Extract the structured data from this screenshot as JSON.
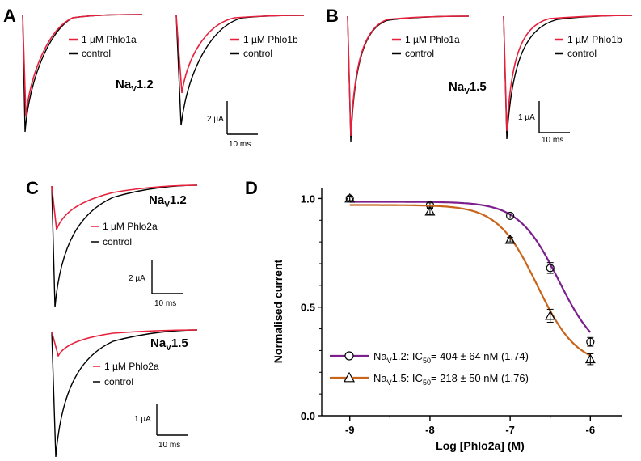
{
  "panels": {
    "A": {
      "label": "A",
      "left_trace": {
        "legend": [
          "1 µM Phlo1a",
          "control"
        ]
      },
      "right_trace": {
        "legend": [
          "1 µM Phlo1b",
          "control"
        ]
      },
      "channel": {
        "main": "Na",
        "sub": "V",
        "suffix": "1.2"
      },
      "scale_bar": {
        "current": "2 µA",
        "time": "10 ms"
      }
    },
    "B": {
      "label": "B",
      "left_trace": {
        "legend": [
          "1 µM Phlo1a",
          "control"
        ]
      },
      "right_trace": {
        "legend": [
          "1 µM Phlo1b",
          "control"
        ]
      },
      "channel": {
        "main": "Na",
        "sub": "V",
        "suffix": "1.5"
      },
      "scale_bar": {
        "current": "1 µA",
        "time": "10 ms"
      }
    },
    "C": {
      "label": "C",
      "top": {
        "channel": {
          "main": "Na",
          "sub": "V",
          "suffix": "1.2"
        },
        "legend": [
          "1 µM Phlo2a",
          "control"
        ],
        "scale_bar": {
          "current": "2 µA",
          "time": "10 ms"
        }
      },
      "bottom": {
        "channel": {
          "main": "Na",
          "sub": "V",
          "suffix": "1.5"
        },
        "legend": [
          "1 µM Phlo2a",
          "control"
        ],
        "scale_bar": {
          "current": "1 µA",
          "time": "10 ms"
        }
      }
    },
    "D": {
      "label": "D"
    }
  },
  "colors": {
    "toxin": "#e8203c",
    "control": "#000000",
    "nav12": "#7b1f8c",
    "nav15": "#c8651b"
  },
  "chart_data": {
    "type": "scatter",
    "xlabel": "Log [Phlo2a] (M)",
    "ylabel": "Normalised current",
    "xlim": [
      -9.35,
      -5.6
    ],
    "ylim": [
      0,
      1.05
    ],
    "xticks": [
      -9,
      -8,
      -7,
      -6
    ],
    "xtick_labels": [
      "-9",
      "-8",
      "-7",
      "-6"
    ],
    "yticks": [
      0,
      0.5,
      1
    ],
    "ytick_labels": [
      "0.0",
      "0.5",
      "1.0"
    ],
    "legend_position": "bottom-left",
    "series": [
      {
        "legend": {
          "main": "Na",
          "sub": "V",
          "rest": "1.2: IC",
          "sub2": "50",
          "tail": "= 404 ± 64 nM (1.74)"
        },
        "marker": "circle",
        "color": "#7b1f8c",
        "x": [
          -9,
          -8,
          -7,
          -6.5,
          -6
        ],
        "y": [
          1.0,
          0.97,
          0.92,
          0.68,
          0.34
        ],
        "err": [
          0.01,
          0.01,
          0.01,
          0.025,
          0.02
        ],
        "fit": {
          "top": 0.985,
          "bottom": 0.26,
          "logIC50": -6.394,
          "hill": 1.74
        }
      },
      {
        "legend": {
          "main": "Na",
          "sub": "V",
          "rest": "1.5: IC",
          "sub2": "50",
          "tail": "= 218 ± 50 nM (1.76)"
        },
        "marker": "triangle",
        "color": "#c8651b",
        "x": [
          -9,
          -8,
          -7,
          -6.5,
          -6
        ],
        "y": [
          1.0,
          0.94,
          0.81,
          0.46,
          0.26
        ],
        "err": [
          0.01,
          0.015,
          0.01,
          0.03,
          0.025
        ],
        "fit": {
          "top": 0.97,
          "bottom": 0.23,
          "logIC50": -6.662,
          "hill": 1.76
        }
      }
    ]
  }
}
